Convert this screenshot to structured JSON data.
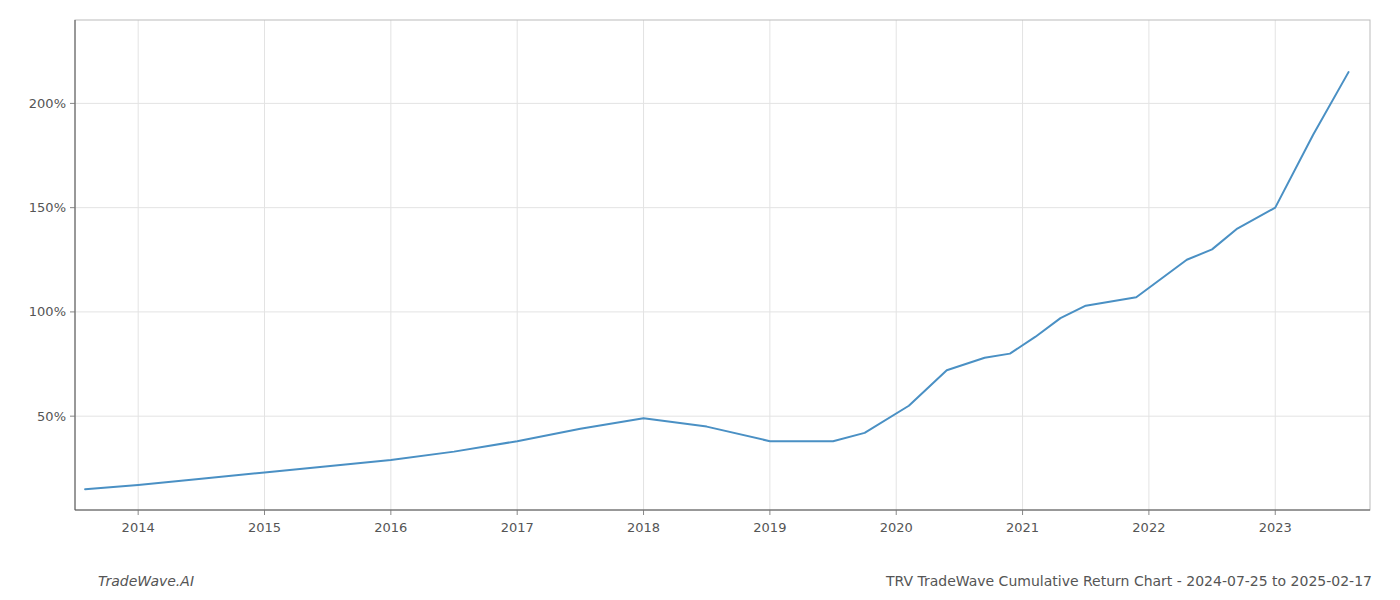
{
  "chart_data": {
    "type": "line",
    "title": "TRV TradeWave Cumulative Return Chart - 2024-07-25 to 2025-02-17",
    "annotations": [
      "TradeWave.AI"
    ],
    "color": "#4a90c4",
    "x": [
      2013.58,
      2014.0,
      2014.5,
      2015.0,
      2015.5,
      2016.0,
      2016.5,
      2017.0,
      2017.5,
      2018.0,
      2018.5,
      2019.0,
      2019.3,
      2019.5,
      2019.75,
      2020.1,
      2020.4,
      2020.7,
      2020.9,
      2021.1,
      2021.3,
      2021.5,
      2021.7,
      2021.9,
      2022.1,
      2022.3,
      2022.5,
      2022.7,
      2023.0,
      2023.3,
      2023.58
    ],
    "values": [
      15,
      17,
      20,
      23,
      26,
      29,
      33,
      38,
      44,
      49,
      45,
      38,
      38,
      38,
      42,
      55,
      72,
      78,
      80,
      88,
      97,
      103,
      105,
      107,
      116,
      125,
      130,
      140,
      150,
      185,
      215
    ],
    "xlim": [
      2013.5,
      2023.75
    ],
    "ylim": [
      5,
      240
    ],
    "xticks": [
      2014,
      2015,
      2016,
      2017,
      2018,
      2019,
      2020,
      2021,
      2022,
      2023
    ],
    "yticks": [
      {
        "value": 50,
        "label": "50%"
      },
      {
        "value": 100,
        "label": "100%"
      },
      {
        "value": 150,
        "label": "150%"
      },
      {
        "value": 200,
        "label": "200%"
      }
    ],
    "grid": true
  }
}
